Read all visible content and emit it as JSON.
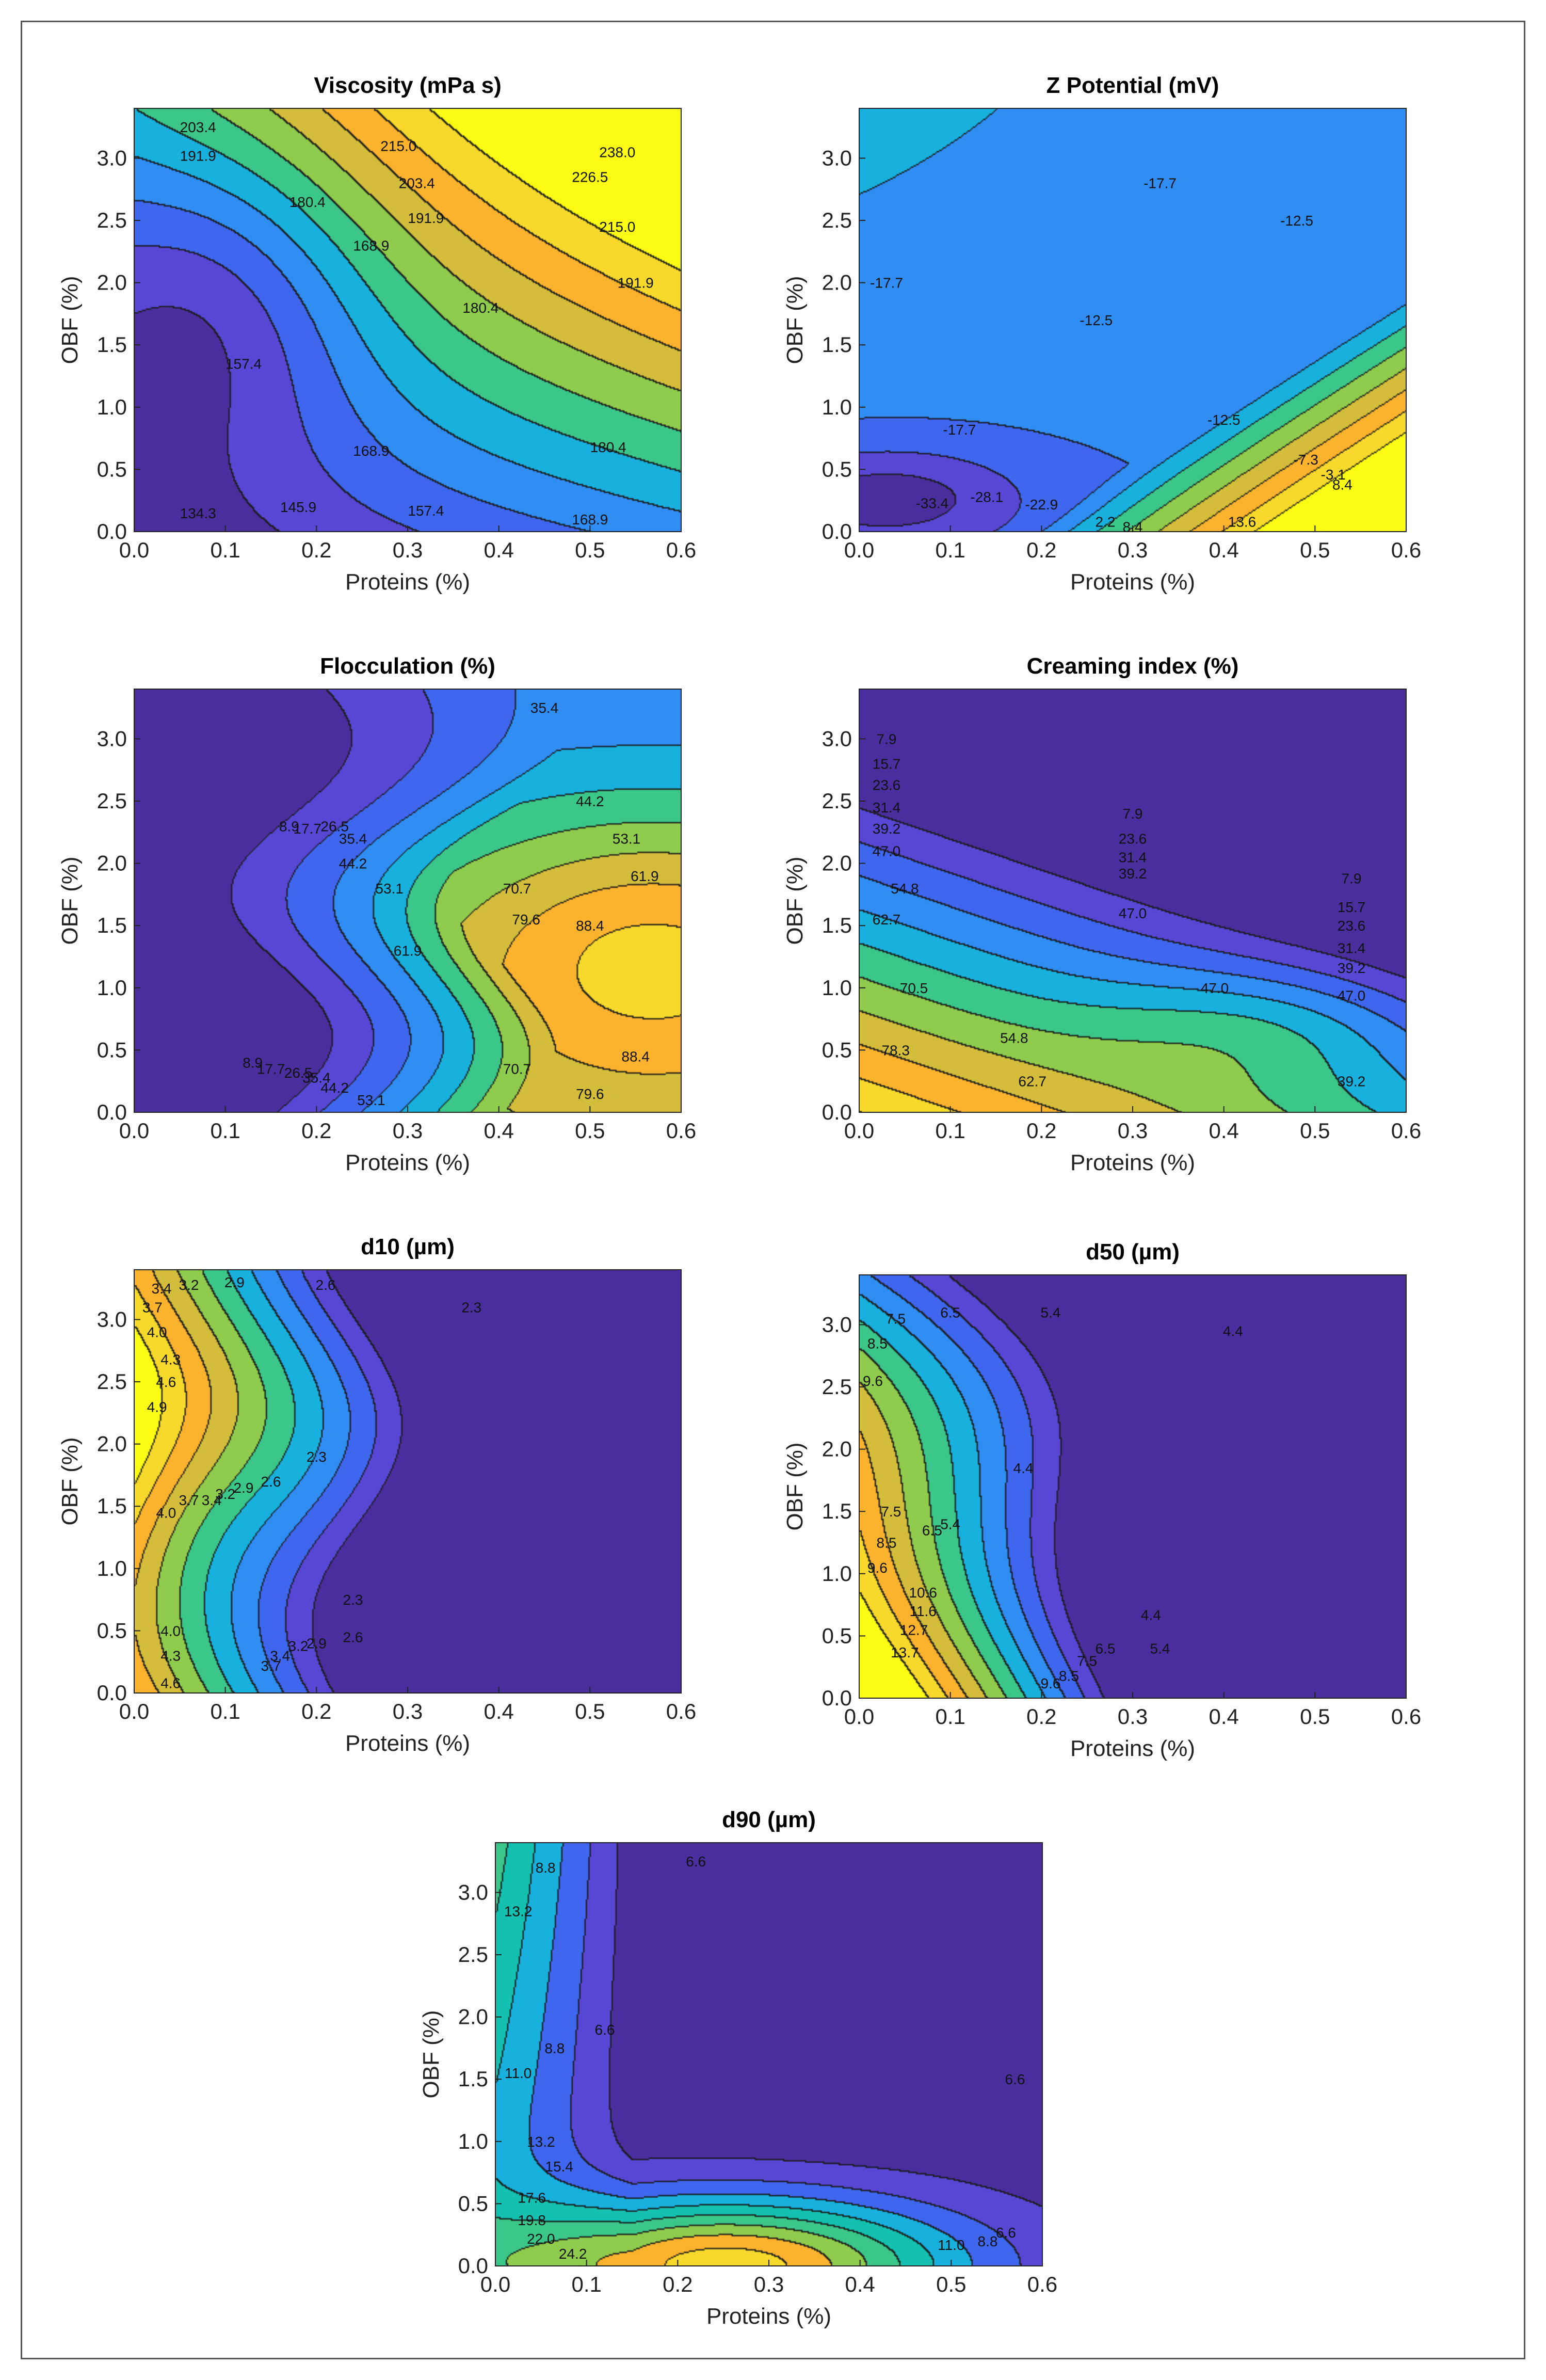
{
  "palette": [
    "#4b2e9e",
    "#5747d4",
    "#3f66ee",
    "#2f8df4",
    "#18b0dd",
    "#14c0b0",
    "#3cc78a",
    "#8fcb4c",
    "#d3bd3b",
    "#fbb32d",
    "#f6d92a",
    "#fbfb13"
  ],
  "line_color": "#1a1a1a",
  "chart_data": [
    {
      "type": "contour",
      "title": "Viscosity  (mPa s)",
      "xlabel": "Proteins (%)",
      "ylabel": "OBF (%)",
      "xlim": [
        0,
        0.6
      ],
      "ylim": [
        0,
        3.4
      ],
      "xticks": [
        "0.0",
        "0.1",
        "0.2",
        "0.3",
        "0.4",
        "0.5",
        "0.6"
      ],
      "yticks": [
        "0.0",
        "0.5",
        "1.0",
        "1.5",
        "2.0",
        "2.5",
        "3.0"
      ],
      "levels": [
        134.3,
        145.9,
        157.4,
        168.9,
        180.4,
        191.9,
        203.4,
        215.0,
        226.5,
        238.0
      ],
      "contour_labels": [
        {
          "text": "203.4",
          "x": 0.07,
          "y": 3.25
        },
        {
          "text": "215.0",
          "x": 0.29,
          "y": 3.1
        },
        {
          "text": "238.0",
          "x": 0.53,
          "y": 3.05
        },
        {
          "text": "191.9",
          "x": 0.07,
          "y": 3.02
        },
        {
          "text": "226.5",
          "x": 0.5,
          "y": 2.85
        },
        {
          "text": "180.4",
          "x": 0.19,
          "y": 2.65
        },
        {
          "text": "203.4",
          "x": 0.31,
          "y": 2.8
        },
        {
          "text": "215.0",
          "x": 0.53,
          "y": 2.45
        },
        {
          "text": "191.9",
          "x": 0.32,
          "y": 2.52
        },
        {
          "text": "168.9",
          "x": 0.26,
          "y": 2.3
        },
        {
          "text": "191.9",
          "x": 0.55,
          "y": 2.0
        },
        {
          "text": "180.4",
          "x": 0.38,
          "y": 1.8
        },
        {
          "text": "157.4",
          "x": 0.12,
          "y": 1.35
        },
        {
          "text": "168.9",
          "x": 0.26,
          "y": 0.65
        },
        {
          "text": "180.4",
          "x": 0.52,
          "y": 0.68
        },
        {
          "text": "145.9",
          "x": 0.18,
          "y": 0.2
        },
        {
          "text": "157.4",
          "x": 0.32,
          "y": 0.17
        },
        {
          "text": "134.3",
          "x": 0.07,
          "y": 0.15
        },
        {
          "text": "168.9",
          "x": 0.5,
          "y": 0.1
        }
      ]
    },
    {
      "type": "contour",
      "title": "Z Potential (mV)",
      "xlabel": "Proteins (%)",
      "ylabel": "OBF (%)",
      "xlim": [
        0,
        0.6
      ],
      "ylim": [
        0,
        3.4
      ],
      "xticks": [
        "0.0",
        "0.1",
        "0.2",
        "0.3",
        "0.4",
        "0.5",
        "0.6"
      ],
      "yticks": [
        "0.0",
        "0.5",
        "1.0",
        "1.5",
        "2.0",
        "2.5",
        "3.0"
      ],
      "levels": [
        -33.4,
        -28.1,
        -22.9,
        -17.7,
        -12.5,
        -7.3,
        -3.1,
        2.2,
        8.4,
        13.6
      ],
      "contour_labels": [
        {
          "text": "-17.7",
          "x": 0.33,
          "y": 2.8
        },
        {
          "text": "-12.5",
          "x": 0.48,
          "y": 2.5
        },
        {
          "text": "-17.7",
          "x": 0.03,
          "y": 2.0
        },
        {
          "text": "-12.5",
          "x": 0.26,
          "y": 1.7
        },
        {
          "text": "-17.7",
          "x": 0.11,
          "y": 0.82
        },
        {
          "text": "-12.5",
          "x": 0.4,
          "y": 0.9
        },
        {
          "text": "-7.3",
          "x": 0.49,
          "y": 0.58
        },
        {
          "text": "-3.1",
          "x": 0.52,
          "y": 0.46
        },
        {
          "text": "8.4",
          "x": 0.53,
          "y": 0.38
        },
        {
          "text": "-33.4",
          "x": 0.08,
          "y": 0.23
        },
        {
          "text": "-28.1",
          "x": 0.14,
          "y": 0.28
        },
        {
          "text": "-22.9",
          "x": 0.2,
          "y": 0.22
        },
        {
          "text": "2.2",
          "x": 0.27,
          "y": 0.08
        },
        {
          "text": "8.4",
          "x": 0.3,
          "y": 0.04
        },
        {
          "text": "13.6",
          "x": 0.42,
          "y": 0.08
        }
      ]
    },
    {
      "type": "contour",
      "title": "Flocculation  (%)",
      "xlabel": "Proteins (%)",
      "ylabel": "OBF (%)",
      "xlim": [
        0,
        0.6
      ],
      "ylim": [
        0,
        3.4
      ],
      "xticks": [
        "0.0",
        "0.1",
        "0.2",
        "0.3",
        "0.4",
        "0.5",
        "0.6"
      ],
      "yticks": [
        "0.0",
        "0.5",
        "1.0",
        "1.5",
        "2.0",
        "2.5",
        "3.0"
      ],
      "levels": [
        8.9,
        17.7,
        26.5,
        35.4,
        44.2,
        53.1,
        61.9,
        70.7,
        79.6,
        88.4
      ],
      "contour_labels": [
        {
          "text": "35.4",
          "x": 0.45,
          "y": 3.25
        },
        {
          "text": "44.2",
          "x": 0.5,
          "y": 2.5
        },
        {
          "text": "8.9",
          "x": 0.17,
          "y": 2.3
        },
        {
          "text": "17.7",
          "x": 0.19,
          "y": 2.28
        },
        {
          "text": "26.5",
          "x": 0.22,
          "y": 2.3
        },
        {
          "text": "35.4",
          "x": 0.24,
          "y": 2.2
        },
        {
          "text": "44.2",
          "x": 0.24,
          "y": 2.0
        },
        {
          "text": "53.1",
          "x": 0.54,
          "y": 2.2
        },
        {
          "text": "53.1",
          "x": 0.28,
          "y": 1.8
        },
        {
          "text": "61.9",
          "x": 0.56,
          "y": 1.9
        },
        {
          "text": "61.9",
          "x": 0.3,
          "y": 1.3
        },
        {
          "text": "70.7",
          "x": 0.42,
          "y": 1.8
        },
        {
          "text": "79.6",
          "x": 0.43,
          "y": 1.55
        },
        {
          "text": "88.4",
          "x": 0.5,
          "y": 1.5
        },
        {
          "text": "8.9",
          "x": 0.13,
          "y": 0.4
        },
        {
          "text": "17.7",
          "x": 0.15,
          "y": 0.35
        },
        {
          "text": "26.5",
          "x": 0.18,
          "y": 0.32
        },
        {
          "text": "35.4",
          "x": 0.2,
          "y": 0.28
        },
        {
          "text": "44.2",
          "x": 0.22,
          "y": 0.2
        },
        {
          "text": "53.1",
          "x": 0.26,
          "y": 0.1
        },
        {
          "text": "70.7",
          "x": 0.42,
          "y": 0.35
        },
        {
          "text": "88.4",
          "x": 0.55,
          "y": 0.45
        },
        {
          "text": "79.6",
          "x": 0.5,
          "y": 0.15
        }
      ]
    },
    {
      "type": "contour",
      "title": "Creaming index  (%)",
      "xlabel": "Proteins (%)",
      "ylabel": "OBF (%)",
      "xlim": [
        0,
        0.6
      ],
      "ylim": [
        0,
        3.4
      ],
      "xticks": [
        "0.0",
        "0.1",
        "0.2",
        "0.3",
        "0.4",
        "0.5",
        "0.6"
      ],
      "yticks": [
        "0.0",
        "0.5",
        "1.0",
        "1.5",
        "2.0",
        "2.5",
        "3.0"
      ],
      "levels": [
        7.9,
        15.7,
        23.6,
        31.4,
        39.2,
        47.0,
        54.8,
        62.7,
        70.5,
        78.3
      ],
      "contour_labels": [
        {
          "text": "7.9",
          "x": 0.03,
          "y": 3.0
        },
        {
          "text": "15.7",
          "x": 0.03,
          "y": 2.8
        },
        {
          "text": "23.6",
          "x": 0.03,
          "y": 2.63
        },
        {
          "text": "31.4",
          "x": 0.03,
          "y": 2.45
        },
        {
          "text": "39.2",
          "x": 0.03,
          "y": 2.28
        },
        {
          "text": "47.0",
          "x": 0.03,
          "y": 2.1
        },
        {
          "text": "7.9",
          "x": 0.3,
          "y": 2.4
        },
        {
          "text": "23.6",
          "x": 0.3,
          "y": 2.2
        },
        {
          "text": "31.4",
          "x": 0.3,
          "y": 2.05
        },
        {
          "text": "39.2",
          "x": 0.3,
          "y": 1.92
        },
        {
          "text": "47.0",
          "x": 0.3,
          "y": 1.6
        },
        {
          "text": "54.8",
          "x": 0.05,
          "y": 1.8
        },
        {
          "text": "62.7",
          "x": 0.03,
          "y": 1.55
        },
        {
          "text": "7.9",
          "x": 0.54,
          "y": 1.88
        },
        {
          "text": "15.7",
          "x": 0.54,
          "y": 1.65
        },
        {
          "text": "23.6",
          "x": 0.54,
          "y": 1.5
        },
        {
          "text": "31.4",
          "x": 0.54,
          "y": 1.32
        },
        {
          "text": "39.2",
          "x": 0.54,
          "y": 1.16
        },
        {
          "text": "47.0",
          "x": 0.39,
          "y": 1.0
        },
        {
          "text": "47.0",
          "x": 0.54,
          "y": 0.94
        },
        {
          "text": "70.5",
          "x": 0.06,
          "y": 1.0
        },
        {
          "text": "54.8",
          "x": 0.17,
          "y": 0.6
        },
        {
          "text": "78.3",
          "x": 0.04,
          "y": 0.5
        },
        {
          "text": "62.7",
          "x": 0.19,
          "y": 0.25
        },
        {
          "text": "39.2",
          "x": 0.54,
          "y": 0.25
        }
      ]
    },
    {
      "type": "contour",
      "title": "d10 (µm)",
      "xlabel": "Proteins (%)",
      "ylabel": "OBF (%)",
      "xlim": [
        0,
        0.6
      ],
      "ylim": [
        0,
        3.4
      ],
      "xticks": [
        "0.0",
        "0.1",
        "0.2",
        "0.3",
        "0.4",
        "0.5",
        "0.6"
      ],
      "yticks": [
        "0.0",
        "0.5",
        "1.0",
        "1.5",
        "2.0",
        "2.5",
        "3.0"
      ],
      "levels": [
        2.3,
        2.6,
        2.9,
        3.2,
        3.4,
        3.7,
        4.0,
        4.3,
        4.6,
        4.9
      ],
      "contour_labels": [
        {
          "text": "2.3",
          "x": 0.37,
          "y": 3.1
        },
        {
          "text": "2.6",
          "x": 0.21,
          "y": 3.28
        },
        {
          "text": "2.9",
          "x": 0.11,
          "y": 3.3
        },
        {
          "text": "3.2",
          "x": 0.06,
          "y": 3.28
        },
        {
          "text": "3.4",
          "x": 0.03,
          "y": 3.25
        },
        {
          "text": "3.7",
          "x": 0.02,
          "y": 3.1
        },
        {
          "text": "4.0",
          "x": 0.025,
          "y": 2.9
        },
        {
          "text": "4.3",
          "x": 0.04,
          "y": 2.68
        },
        {
          "text": "4.6",
          "x": 0.035,
          "y": 2.5
        },
        {
          "text": "4.9",
          "x": 0.025,
          "y": 2.3
        },
        {
          "text": "2.3",
          "x": 0.2,
          "y": 1.9
        },
        {
          "text": "2.6",
          "x": 0.15,
          "y": 1.7
        },
        {
          "text": "2.9",
          "x": 0.12,
          "y": 1.65
        },
        {
          "text": "3.2",
          "x": 0.1,
          "y": 1.6
        },
        {
          "text": "3.4",
          "x": 0.085,
          "y": 1.55
        },
        {
          "text": "3.7",
          "x": 0.06,
          "y": 1.55
        },
        {
          "text": "4.0",
          "x": 0.035,
          "y": 1.45
        },
        {
          "text": "2.3",
          "x": 0.24,
          "y": 0.75
        },
        {
          "text": "4.0",
          "x": 0.04,
          "y": 0.5
        },
        {
          "text": "2.6",
          "x": 0.24,
          "y": 0.45
        },
        {
          "text": "2.9",
          "x": 0.2,
          "y": 0.4
        },
        {
          "text": "3.2",
          "x": 0.18,
          "y": 0.38
        },
        {
          "text": "3.4",
          "x": 0.16,
          "y": 0.3
        },
        {
          "text": "3.7",
          "x": 0.15,
          "y": 0.22
        },
        {
          "text": "4.3",
          "x": 0.04,
          "y": 0.3
        },
        {
          "text": "4.6",
          "x": 0.04,
          "y": 0.08
        }
      ]
    },
    {
      "type": "contour",
      "title": "d50 (µm)",
      "xlabel": "Proteins (%)",
      "ylabel": "OBF (%)",
      "xlim": [
        0,
        0.6
      ],
      "ylim": [
        0,
        3.4
      ],
      "xticks": [
        "0.0",
        "0.1",
        "0.2",
        "0.3",
        "0.4",
        "0.5",
        "0.6"
      ],
      "yticks": [
        "0.0",
        "0.5",
        "1.0",
        "1.5",
        "2.0",
        "2.5",
        "3.0"
      ],
      "levels": [
        4.4,
        5.4,
        6.5,
        7.5,
        8.5,
        9.6,
        10.6,
        11.6,
        12.7,
        13.7
      ],
      "contour_labels": [
        {
          "text": "4.4",
          "x": 0.41,
          "y": 2.95
        },
        {
          "text": "5.4",
          "x": 0.21,
          "y": 3.1
        },
        {
          "text": "6.5",
          "x": 0.1,
          "y": 3.1
        },
        {
          "text": "7.5",
          "x": 0.04,
          "y": 3.05
        },
        {
          "text": "8.5",
          "x": 0.02,
          "y": 2.85
        },
        {
          "text": "9.6",
          "x": 0.015,
          "y": 2.55
        },
        {
          "text": "4.4",
          "x": 0.18,
          "y": 1.85
        },
        {
          "text": "5.4",
          "x": 0.1,
          "y": 1.4
        },
        {
          "text": "6.5",
          "x": 0.08,
          "y": 1.35
        },
        {
          "text": "7.5",
          "x": 0.035,
          "y": 1.5
        },
        {
          "text": "8.5",
          "x": 0.03,
          "y": 1.25
        },
        {
          "text": "9.6",
          "x": 0.02,
          "y": 1.05
        },
        {
          "text": "10.6",
          "x": 0.07,
          "y": 0.85
        },
        {
          "text": "11.6",
          "x": 0.07,
          "y": 0.7
        },
        {
          "text": "12.7",
          "x": 0.06,
          "y": 0.55
        },
        {
          "text": "13.7",
          "x": 0.05,
          "y": 0.37
        },
        {
          "text": "4.4",
          "x": 0.32,
          "y": 0.67
        },
        {
          "text": "5.4",
          "x": 0.33,
          "y": 0.4
        },
        {
          "text": "6.5",
          "x": 0.27,
          "y": 0.4
        },
        {
          "text": "7.5",
          "x": 0.25,
          "y": 0.3
        },
        {
          "text": "8.5",
          "x": 0.23,
          "y": 0.18
        },
        {
          "text": "9.6",
          "x": 0.21,
          "y": 0.12
        }
      ]
    },
    {
      "type": "contour",
      "title": "d90 (µm)",
      "xlabel": "Proteins (%)",
      "ylabel": "OBF (%)",
      "xlim": [
        0,
        0.6
      ],
      "ylim": [
        0,
        3.4
      ],
      "xticks": [
        "0.0",
        "0.1",
        "0.2",
        "0.3",
        "0.4",
        "0.5",
        "0.6"
      ],
      "yticks": [
        "0.0",
        "0.5",
        "1.0",
        "1.5",
        "2.0",
        "2.5",
        "3.0"
      ],
      "levels": [
        6.6,
        8.8,
        11.0,
        13.2,
        15.4,
        17.6,
        19.8,
        22.0,
        24.2
      ],
      "contour_labels": [
        {
          "text": "6.6",
          "x": 0.22,
          "y": 3.25
        },
        {
          "text": "8.8",
          "x": 0.055,
          "y": 3.2
        },
        {
          "text": "13.2",
          "x": 0.025,
          "y": 2.85
        },
        {
          "text": "6.6",
          "x": 0.12,
          "y": 1.9
        },
        {
          "text": "8.8",
          "x": 0.065,
          "y": 1.75
        },
        {
          "text": "11.0",
          "x": 0.025,
          "y": 1.55
        },
        {
          "text": "6.6",
          "x": 0.57,
          "y": 1.5
        },
        {
          "text": "13.2",
          "x": 0.05,
          "y": 1.0
        },
        {
          "text": "15.4",
          "x": 0.07,
          "y": 0.8
        },
        {
          "text": "17.6",
          "x": 0.04,
          "y": 0.55
        },
        {
          "text": "19.8",
          "x": 0.04,
          "y": 0.37
        },
        {
          "text": "22.0",
          "x": 0.05,
          "y": 0.22
        },
        {
          "text": "24.2",
          "x": 0.085,
          "y": 0.1
        },
        {
          "text": "6.6",
          "x": 0.56,
          "y": 0.27
        },
        {
          "text": "8.8",
          "x": 0.54,
          "y": 0.2
        },
        {
          "text": "11.0",
          "x": 0.5,
          "y": 0.17
        }
      ]
    }
  ]
}
